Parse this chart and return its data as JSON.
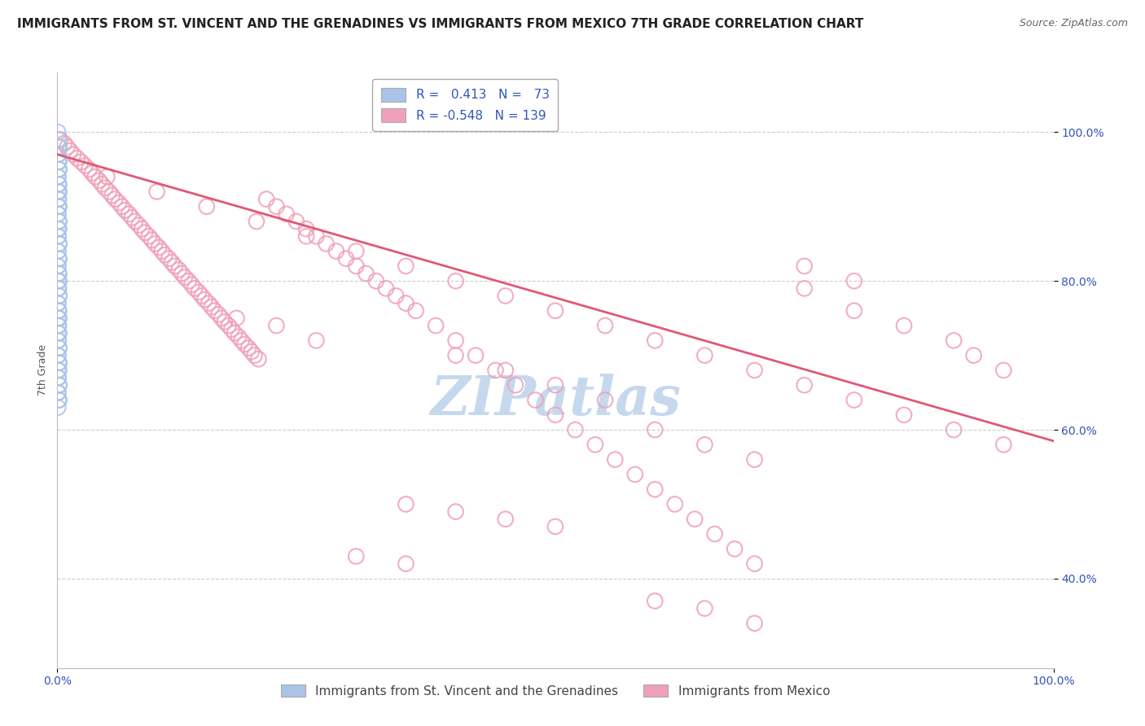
{
  "title": "IMMIGRANTS FROM ST. VINCENT AND THE GRENADINES VS IMMIGRANTS FROM MEXICO 7TH GRADE CORRELATION CHART",
  "source": "Source: ZipAtlas.com",
  "ylabel": "7th Grade",
  "blue_R": 0.413,
  "blue_N": 73,
  "pink_R": -0.548,
  "pink_N": 139,
  "blue_color": "#aac4e8",
  "pink_color": "#f0a0b8",
  "pink_line_color": "#e05878",
  "legend_label_blue": "Immigrants from St. Vincent and the Grenadines",
  "legend_label_pink": "Immigrants from Mexico",
  "watermark": "ZIPatlas",
  "xlim": [
    0.0,
    1.0
  ],
  "ylim": [
    0.28,
    1.08
  ],
  "ytick_positions": [
    0.4,
    0.6,
    0.8,
    1.0
  ],
  "ytick_labels": [
    "40.0%",
    "60.0%",
    "80.0%",
    "100.0%"
  ],
  "pink_line_x0": 0.0,
  "pink_line_y0": 0.97,
  "pink_line_x1": 1.0,
  "pink_line_y1": 0.585,
  "blue_scatter_x": [
    0.0008,
    0.001,
    0.0015,
    0.002,
    0.0008,
    0.0012,
    0.0018,
    0.001,
    0.0015,
    0.002,
    0.0008,
    0.001,
    0.0012,
    0.0018,
    0.002,
    0.0008,
    0.001,
    0.0015,
    0.002,
    0.0012,
    0.0008,
    0.001,
    0.0015,
    0.002,
    0.0018,
    0.0008,
    0.001,
    0.0012,
    0.0018,
    0.002,
    0.0008,
    0.001,
    0.0015,
    0.002,
    0.0008,
    0.001,
    0.0012,
    0.0018,
    0.002,
    0.0008,
    0.001,
    0.0015,
    0.002,
    0.0018,
    0.0008,
    0.001,
    0.0012,
    0.0018,
    0.002,
    0.0008,
    0.001,
    0.0015,
    0.002,
    0.0008,
    0.001,
    0.0012,
    0.0018,
    0.002,
    0.0008,
    0.001,
    0.0015,
    0.002,
    0.0018,
    0.0008,
    0.001,
    0.0012,
    0.0018,
    0.002,
    0.0008,
    0.001,
    0.0015,
    0.002,
    0.0008
  ],
  "blue_scatter_y": [
    1.0,
    0.99,
    0.98,
    0.98,
    0.97,
    0.97,
    0.96,
    0.96,
    0.95,
    0.95,
    0.94,
    0.94,
    0.93,
    0.93,
    0.92,
    0.92,
    0.91,
    0.91,
    0.9,
    0.9,
    0.89,
    0.89,
    0.88,
    0.88,
    0.87,
    0.87,
    0.86,
    0.86,
    0.85,
    0.85,
    0.84,
    0.84,
    0.83,
    0.83,
    0.82,
    0.82,
    0.81,
    0.81,
    0.8,
    0.8,
    0.79,
    0.79,
    0.78,
    0.78,
    0.77,
    0.77,
    0.76,
    0.76,
    0.75,
    0.75,
    0.74,
    0.74,
    0.73,
    0.73,
    0.72,
    0.72,
    0.71,
    0.71,
    0.7,
    0.7,
    0.69,
    0.69,
    0.68,
    0.68,
    0.67,
    0.67,
    0.66,
    0.66,
    0.65,
    0.65,
    0.64,
    0.64,
    0.63
  ],
  "pink_scatter_x": [
    0.003,
    0.007,
    0.01,
    0.013,
    0.016,
    0.02,
    0.024,
    0.028,
    0.032,
    0.035,
    0.038,
    0.042,
    0.045,
    0.048,
    0.052,
    0.055,
    0.058,
    0.062,
    0.065,
    0.068,
    0.072,
    0.075,
    0.078,
    0.082,
    0.085,
    0.088,
    0.092,
    0.095,
    0.098,
    0.102,
    0.105,
    0.108,
    0.112,
    0.115,
    0.118,
    0.122,
    0.125,
    0.128,
    0.132,
    0.135,
    0.138,
    0.142,
    0.145,
    0.148,
    0.152,
    0.155,
    0.158,
    0.162,
    0.165,
    0.168,
    0.172,
    0.175,
    0.178,
    0.182,
    0.185,
    0.188,
    0.192,
    0.195,
    0.198,
    0.202,
    0.21,
    0.22,
    0.23,
    0.24,
    0.25,
    0.26,
    0.27,
    0.28,
    0.29,
    0.3,
    0.31,
    0.32,
    0.33,
    0.34,
    0.35,
    0.36,
    0.38,
    0.4,
    0.42,
    0.44,
    0.46,
    0.48,
    0.5,
    0.52,
    0.54,
    0.56,
    0.58,
    0.6,
    0.62,
    0.64,
    0.66,
    0.68,
    0.7,
    0.05,
    0.1,
    0.15,
    0.2,
    0.25,
    0.3,
    0.35,
    0.4,
    0.45,
    0.5,
    0.55,
    0.6,
    0.65,
    0.7,
    0.75,
    0.8,
    0.85,
    0.9,
    0.95,
    0.75,
    0.8,
    0.75,
    0.8,
    0.85,
    0.9,
    0.92,
    0.95,
    0.4,
    0.45,
    0.5,
    0.55,
    0.6,
    0.65,
    0.7,
    0.35,
    0.4,
    0.45,
    0.5,
    0.3,
    0.35,
    0.6,
    0.65,
    0.7,
    0.18,
    0.22,
    0.26
  ],
  "pink_scatter_y": [
    0.99,
    0.985,
    0.98,
    0.975,
    0.97,
    0.965,
    0.96,
    0.955,
    0.95,
    0.945,
    0.94,
    0.935,
    0.93,
    0.925,
    0.92,
    0.915,
    0.91,
    0.905,
    0.9,
    0.895,
    0.89,
    0.885,
    0.88,
    0.875,
    0.87,
    0.865,
    0.86,
    0.855,
    0.85,
    0.845,
    0.84,
    0.835,
    0.83,
    0.825,
    0.82,
    0.815,
    0.81,
    0.805,
    0.8,
    0.795,
    0.79,
    0.785,
    0.78,
    0.775,
    0.77,
    0.765,
    0.76,
    0.755,
    0.75,
    0.745,
    0.74,
    0.735,
    0.73,
    0.725,
    0.72,
    0.715,
    0.71,
    0.705,
    0.7,
    0.695,
    0.91,
    0.9,
    0.89,
    0.88,
    0.87,
    0.86,
    0.85,
    0.84,
    0.83,
    0.82,
    0.81,
    0.8,
    0.79,
    0.78,
    0.77,
    0.76,
    0.74,
    0.72,
    0.7,
    0.68,
    0.66,
    0.64,
    0.62,
    0.6,
    0.58,
    0.56,
    0.54,
    0.52,
    0.5,
    0.48,
    0.46,
    0.44,
    0.42,
    0.94,
    0.92,
    0.9,
    0.88,
    0.86,
    0.84,
    0.82,
    0.8,
    0.78,
    0.76,
    0.74,
    0.72,
    0.7,
    0.68,
    0.66,
    0.64,
    0.62,
    0.6,
    0.58,
    0.82,
    0.8,
    0.79,
    0.76,
    0.74,
    0.72,
    0.7,
    0.68,
    0.7,
    0.68,
    0.66,
    0.64,
    0.6,
    0.58,
    0.56,
    0.5,
    0.49,
    0.48,
    0.47,
    0.43,
    0.42,
    0.37,
    0.36,
    0.34,
    0.75,
    0.74,
    0.72
  ],
  "title_fontsize": 11,
  "source_fontsize": 9,
  "axis_label_fontsize": 9,
  "tick_fontsize": 10,
  "legend_fontsize": 11,
  "watermark_fontsize": 48,
  "watermark_color": "#c5d8ee",
  "background_color": "#ffffff",
  "grid_color": "#cccccc",
  "tick_color": "#3355bb",
  "legend_R_color": "#3355bb",
  "legend_N_color": "#3355bb"
}
